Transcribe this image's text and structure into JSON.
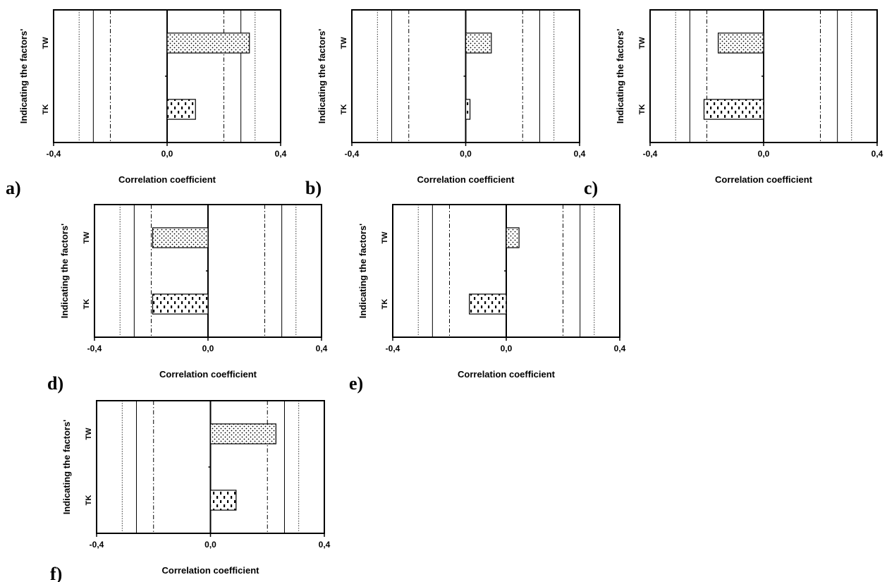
{
  "chart_data": [
    {
      "type": "bar",
      "orientation": "horizontal",
      "panel_label": "a)",
      "xlabel": "Correlation coefficient",
      "ylabel": "Indicating the factors'",
      "xlim": [
        -0.4,
        0.4
      ],
      "xticks": [
        "-0,4",
        "0,0",
        "0,4"
      ],
      "categories": [
        "TW",
        "TK"
      ],
      "values": [
        0.29,
        0.1
      ],
      "patterns": [
        "dots",
        "dashes"
      ],
      "reference_lines": [
        {
          "value": -0.31,
          "style": "dotted"
        },
        {
          "value": -0.26,
          "style": "solid"
        },
        {
          "value": -0.2,
          "style": "dashdot"
        },
        {
          "value": 0.2,
          "style": "dashdot"
        },
        {
          "value": 0.26,
          "style": "solid"
        },
        {
          "value": 0.31,
          "style": "dotted"
        }
      ]
    },
    {
      "type": "bar",
      "orientation": "horizontal",
      "panel_label": "b)",
      "xlabel": "Correlation coefficient",
      "ylabel": "Indicating the factors'",
      "xlim": [
        -0.4,
        0.4
      ],
      "xticks": [
        "-0,4",
        "0,0",
        "0,4"
      ],
      "categories": [
        "TW",
        "TK"
      ],
      "values": [
        0.09,
        0.015
      ],
      "patterns": [
        "dots",
        "dashes"
      ],
      "reference_lines": [
        {
          "value": -0.31,
          "style": "dotted"
        },
        {
          "value": -0.26,
          "style": "solid"
        },
        {
          "value": -0.2,
          "style": "dashdot"
        },
        {
          "value": 0.2,
          "style": "dashdot"
        },
        {
          "value": 0.26,
          "style": "solid"
        },
        {
          "value": 0.31,
          "style": "dotted"
        }
      ]
    },
    {
      "type": "bar",
      "orientation": "horizontal",
      "panel_label": "c)",
      "xlabel": "Correlation coefficient",
      "ylabel": "Indicating the factors'",
      "xlim": [
        -0.4,
        0.4
      ],
      "xticks": [
        "-0,4",
        "0,0",
        "0,4"
      ],
      "categories": [
        "TW",
        "TK"
      ],
      "values": [
        -0.16,
        -0.21
      ],
      "patterns": [
        "dots",
        "dashes"
      ],
      "reference_lines": [
        {
          "value": -0.31,
          "style": "dotted"
        },
        {
          "value": -0.26,
          "style": "solid"
        },
        {
          "value": -0.2,
          "style": "dashdot"
        },
        {
          "value": 0.2,
          "style": "dashdot"
        },
        {
          "value": 0.26,
          "style": "solid"
        },
        {
          "value": 0.31,
          "style": "dotted"
        }
      ]
    },
    {
      "type": "bar",
      "orientation": "horizontal",
      "panel_label": "d)",
      "xlabel": "Correlation coefficient",
      "ylabel": "Indicating the factors'",
      "xlim": [
        -0.4,
        0.4
      ],
      "xticks": [
        "-0,4",
        "0,0",
        "0,4"
      ],
      "categories": [
        "TW",
        "TK"
      ],
      "values": [
        -0.195,
        -0.195
      ],
      "patterns": [
        "dots",
        "dashes"
      ],
      "reference_lines": [
        {
          "value": -0.31,
          "style": "dotted"
        },
        {
          "value": -0.26,
          "style": "solid"
        },
        {
          "value": -0.2,
          "style": "dashdot"
        },
        {
          "value": 0.2,
          "style": "dashdot"
        },
        {
          "value": 0.26,
          "style": "solid"
        },
        {
          "value": 0.31,
          "style": "dotted"
        }
      ]
    },
    {
      "type": "bar",
      "orientation": "horizontal",
      "panel_label": "e)",
      "xlabel": "Correlation coefficient",
      "ylabel": "Indicating the factors'",
      "xlim": [
        -0.4,
        0.4
      ],
      "xticks": [
        "-0,4",
        "0,0",
        "0,4"
      ],
      "categories": [
        "TW",
        "TK"
      ],
      "values": [
        0.045,
        -0.13
      ],
      "patterns": [
        "dots",
        "dashes"
      ],
      "reference_lines": [
        {
          "value": -0.31,
          "style": "dotted"
        },
        {
          "value": -0.26,
          "style": "solid"
        },
        {
          "value": -0.2,
          "style": "dashdot"
        },
        {
          "value": 0.2,
          "style": "dashdot"
        },
        {
          "value": 0.26,
          "style": "solid"
        },
        {
          "value": 0.31,
          "style": "dotted"
        }
      ]
    },
    {
      "type": "bar",
      "orientation": "horizontal",
      "panel_label": "f)",
      "xlabel": "Correlation coefficient",
      "ylabel": "Indicating the factors'",
      "xlim": [
        -0.4,
        0.4
      ],
      "xticks": [
        "-0,4",
        "0,0",
        "0,4"
      ],
      "categories": [
        "TW",
        "TK"
      ],
      "values": [
        0.23,
        0.09
      ],
      "patterns": [
        "dots",
        "dashes"
      ],
      "reference_lines": [
        {
          "value": -0.31,
          "style": "dotted"
        },
        {
          "value": -0.26,
          "style": "solid"
        },
        {
          "value": -0.2,
          "style": "dashdot"
        },
        {
          "value": 0.2,
          "style": "dashdot"
        },
        {
          "value": 0.26,
          "style": "solid"
        },
        {
          "value": 0.31,
          "style": "dotted"
        }
      ]
    }
  ],
  "colors": {
    "bar_fill": "#ffffff",
    "pattern": "#000000",
    "axis": "#000000"
  }
}
